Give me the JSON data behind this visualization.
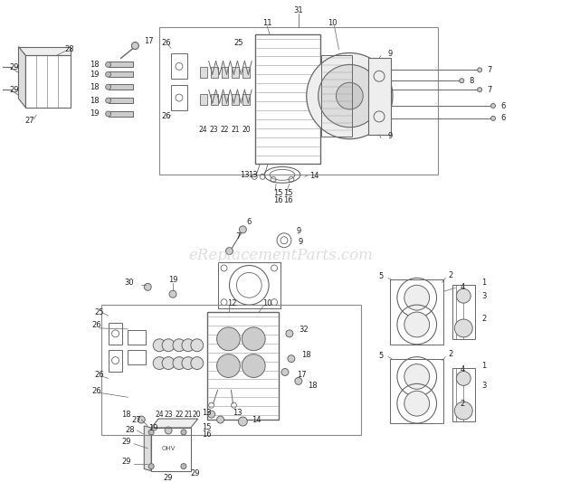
{
  "watermark": "eReplacementParts.com",
  "bg_color": "#ffffff",
  "figsize": [
    6.2,
    5.33
  ],
  "dpi": 100,
  "lc": "#666666",
  "dc": "#999999"
}
